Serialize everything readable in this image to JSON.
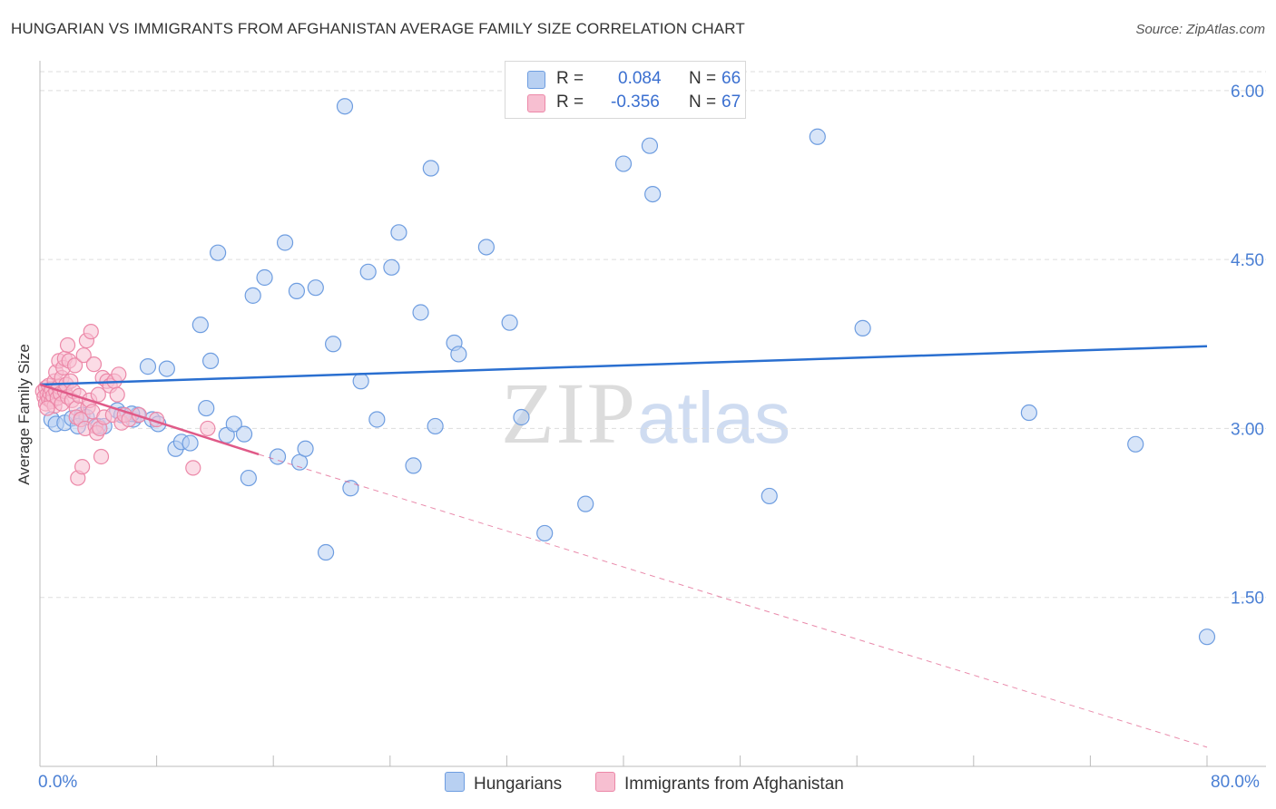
{
  "title": "HUNGARIAN VS IMMIGRANTS FROM AFGHANISTAN AVERAGE FAMILY SIZE CORRELATION CHART",
  "source": "Source: ZipAtlas.com",
  "watermark": {
    "zip": "ZIP",
    "atlas": "atlas"
  },
  "legend": {
    "r_label": "R =",
    "n_label": "N =",
    "series": [
      {
        "name": "Hungarians",
        "r": "0.084",
        "n": "66"
      },
      {
        "name": "Immigrants from Afghanistan",
        "r": "-0.356",
        "n": "67"
      }
    ]
  },
  "colors": {
    "blue_fill": "#b8d0f2",
    "blue_stroke": "#6e9de0",
    "blue_line": "#2a6fd0",
    "pink_fill": "#f7bfd1",
    "pink_stroke": "#ec88a8",
    "pink_line": "#e05a88",
    "grid": "#dddddd",
    "tick_text": "#4a7fd4"
  },
  "chart_data": {
    "type": "scatter",
    "title": "HUNGARIAN VS IMMIGRANTS FROM AFGHANISTAN AVERAGE FAMILY SIZE CORRELATION CHART",
    "xlabel": "",
    "ylabel": "Average Family Size",
    "xlim": [
      0,
      80
    ],
    "ylim": [
      0,
      6.2
    ],
    "x_tick_labels": [
      "0.0%",
      "80.0%"
    ],
    "y_ticks": [
      1.5,
      3.0,
      4.5,
      6.0
    ],
    "y_tick_labels": [
      "1.50",
      "3.00",
      "4.50",
      "6.00"
    ],
    "grid": true,
    "series": [
      {
        "name": "Hungarians",
        "r": 0.084,
        "n": 66,
        "trend": {
          "x": [
            0,
            80
          ],
          "y": [
            3.39,
            3.73
          ]
        },
        "points": [
          [
            0.8,
            3.08
          ],
          [
            1.1,
            3.04
          ],
          [
            1.7,
            3.05
          ],
          [
            2.2,
            3.09
          ],
          [
            2.9,
            3.12
          ],
          [
            3.2,
            3.1
          ],
          [
            4.0,
            3.02
          ],
          [
            4.4,
            3.02
          ],
          [
            5.3,
            3.16
          ],
          [
            5.6,
            3.12
          ],
          [
            6.4,
            3.08
          ],
          [
            6.7,
            3.12
          ],
          [
            7.4,
            3.55
          ],
          [
            7.7,
            3.08
          ],
          [
            8.1,
            3.04
          ],
          [
            8.7,
            3.53
          ],
          [
            9.3,
            2.82
          ],
          [
            9.7,
            2.88
          ],
          [
            10.3,
            2.87
          ],
          [
            11.0,
            3.92
          ],
          [
            11.4,
            3.18
          ],
          [
            11.7,
            3.6
          ],
          [
            12.2,
            4.56
          ],
          [
            12.8,
            2.94
          ],
          [
            13.3,
            3.04
          ],
          [
            14.0,
            2.95
          ],
          [
            14.3,
            2.56
          ],
          [
            14.6,
            4.18
          ],
          [
            15.4,
            4.34
          ],
          [
            16.3,
            2.75
          ],
          [
            16.8,
            4.65
          ],
          [
            17.6,
            4.22
          ],
          [
            17.8,
            2.7
          ],
          [
            18.2,
            2.82
          ],
          [
            18.9,
            4.25
          ],
          [
            19.6,
            1.9
          ],
          [
            20.1,
            3.75
          ],
          [
            20.9,
            5.86
          ],
          [
            21.3,
            2.47
          ],
          [
            22.0,
            3.42
          ],
          [
            22.5,
            4.39
          ],
          [
            23.1,
            3.08
          ],
          [
            24.1,
            4.43
          ],
          [
            24.6,
            4.74
          ],
          [
            25.6,
            2.67
          ],
          [
            26.1,
            4.03
          ],
          [
            26.8,
            5.31
          ],
          [
            27.1,
            3.02
          ],
          [
            28.4,
            3.76
          ],
          [
            28.7,
            3.66
          ],
          [
            30.6,
            4.61
          ],
          [
            32.2,
            3.94
          ],
          [
            33.0,
            3.1
          ],
          [
            34.6,
            2.07
          ],
          [
            37.4,
            2.33
          ],
          [
            40.0,
            5.35
          ],
          [
            41.8,
            5.51
          ],
          [
            42.0,
            5.08
          ],
          [
            50.0,
            2.4
          ],
          [
            53.3,
            5.59
          ],
          [
            56.4,
            3.89
          ],
          [
            67.8,
            3.14
          ],
          [
            75.1,
            2.86
          ],
          [
            80.0,
            1.15
          ],
          [
            2.6,
            3.02
          ],
          [
            6.3,
            3.13
          ]
        ]
      },
      {
        "name": "Immigrants from Afghanistan",
        "r": -0.356,
        "n": 67,
        "trend": {
          "x": [
            0,
            15
          ],
          "y": [
            3.39,
            2.77
          ]
        },
        "trend_extrapolated": {
          "x": [
            15,
            80
          ],
          "y": [
            2.77,
            0.17
          ]
        },
        "points": [
          [
            0.2,
            3.33
          ],
          [
            0.3,
            3.28
          ],
          [
            0.4,
            3.36
          ],
          [
            0.4,
            3.22
          ],
          [
            0.5,
            3.3
          ],
          [
            0.6,
            3.26
          ],
          [
            0.6,
            3.38
          ],
          [
            0.7,
            3.31
          ],
          [
            0.8,
            3.24
          ],
          [
            0.8,
            3.35
          ],
          [
            0.9,
            3.29
          ],
          [
            1.0,
            3.42
          ],
          [
            1.0,
            3.2
          ],
          [
            1.1,
            3.33
          ],
          [
            1.1,
            3.5
          ],
          [
            1.2,
            3.27
          ],
          [
            1.3,
            3.37
          ],
          [
            1.3,
            3.6
          ],
          [
            1.4,
            3.31
          ],
          [
            1.5,
            3.45
          ],
          [
            1.5,
            3.22
          ],
          [
            1.6,
            3.54
          ],
          [
            1.7,
            3.33
          ],
          [
            1.7,
            3.62
          ],
          [
            1.8,
            3.39
          ],
          [
            1.9,
            3.74
          ],
          [
            1.9,
            3.28
          ],
          [
            2.0,
            3.6
          ],
          [
            2.1,
            3.42
          ],
          [
            2.2,
            3.25
          ],
          [
            2.3,
            3.33
          ],
          [
            2.4,
            3.56
          ],
          [
            2.5,
            3.18
          ],
          [
            2.5,
            3.1
          ],
          [
            2.6,
            2.56
          ],
          [
            2.7,
            3.29
          ],
          [
            2.8,
            3.08
          ],
          [
            2.9,
            2.66
          ],
          [
            3.0,
            3.65
          ],
          [
            3.1,
            3.0
          ],
          [
            3.2,
            3.78
          ],
          [
            3.3,
            3.19
          ],
          [
            3.4,
            3.25
          ],
          [
            3.5,
            3.86
          ],
          [
            3.6,
            3.15
          ],
          [
            3.7,
            3.57
          ],
          [
            3.8,
            3.02
          ],
          [
            3.9,
            2.96
          ],
          [
            4.0,
            3.3
          ],
          [
            4.1,
            3.0
          ],
          [
            4.2,
            2.75
          ],
          [
            4.3,
            3.45
          ],
          [
            4.4,
            3.1
          ],
          [
            4.6,
            3.42
          ],
          [
            4.8,
            3.38
          ],
          [
            5.0,
            3.12
          ],
          [
            5.1,
            3.42
          ],
          [
            5.3,
            3.3
          ],
          [
            5.4,
            3.48
          ],
          [
            5.6,
            3.05
          ],
          [
            5.8,
            3.12
          ],
          [
            6.1,
            3.08
          ],
          [
            6.8,
            3.12
          ],
          [
            8.0,
            3.08
          ],
          [
            10.5,
            2.65
          ],
          [
            11.5,
            3.0
          ],
          [
            0.5,
            3.18
          ]
        ]
      }
    ]
  }
}
